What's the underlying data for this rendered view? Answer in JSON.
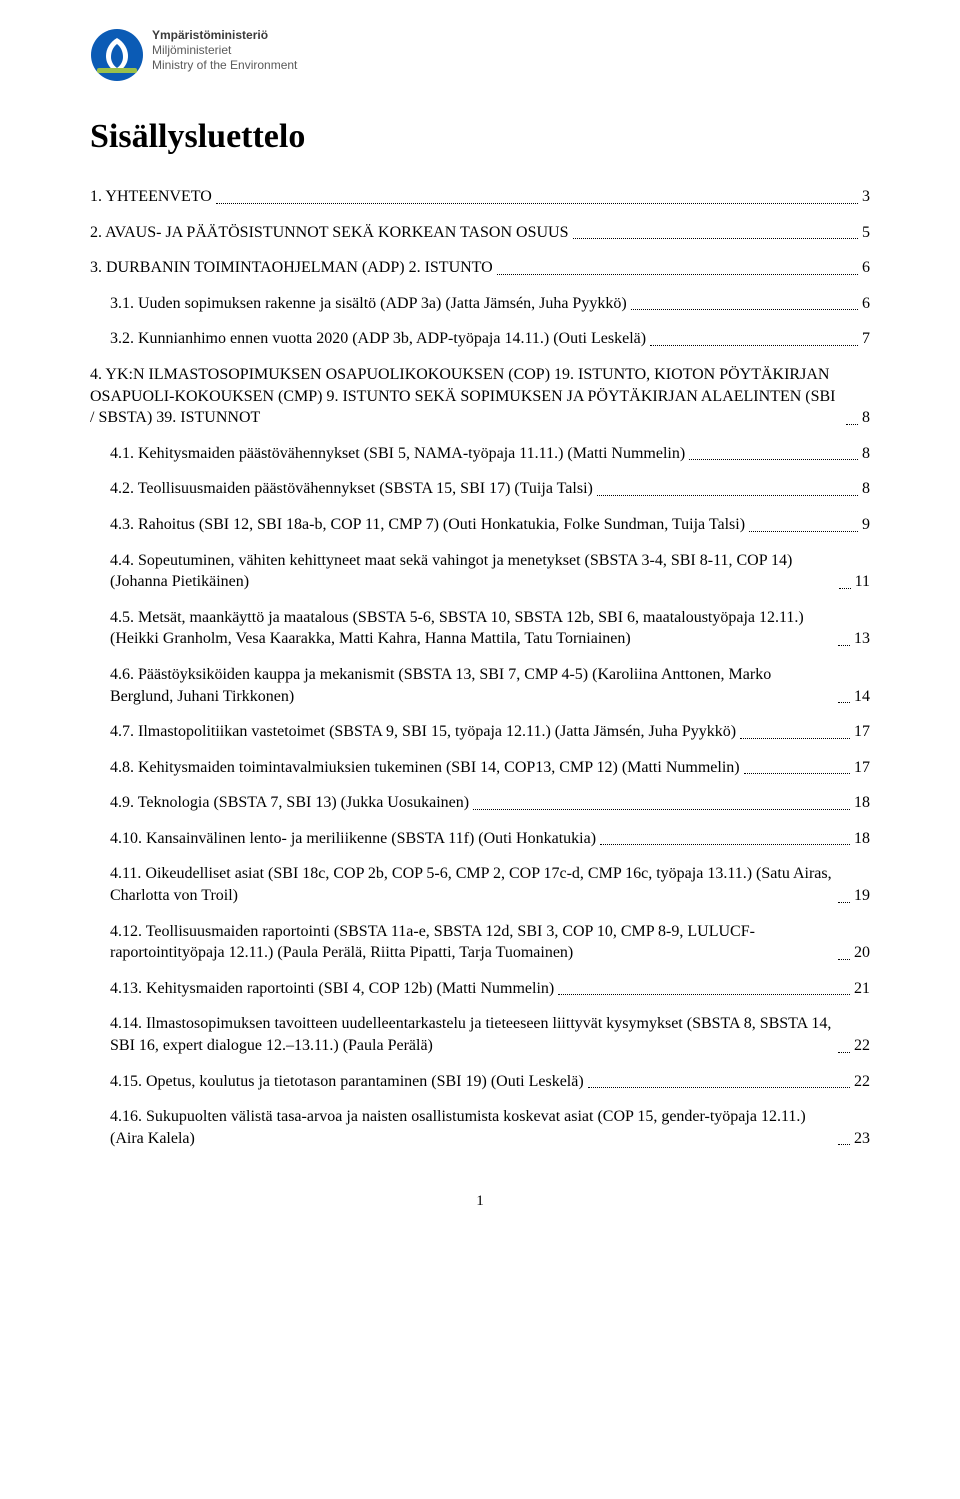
{
  "logo": {
    "line1": "Ympäristöministeriö",
    "line2": "Miljöministeriet",
    "line3": "Ministry of the Environment",
    "emblem_bg": "#0b5bb5",
    "emblem_fg": "#ffffff"
  },
  "title": "Sisällysluettelo",
  "page_number": "1",
  "toc": [
    {
      "level": 1,
      "label": "1. YHTEENVETO",
      "page": "3"
    },
    {
      "level": 1,
      "label": "2. AVAUS- JA PÄÄTÖSISTUNNOT SEKÄ KORKEAN TASON OSUUS",
      "page": "5"
    },
    {
      "level": 1,
      "label": "3. DURBANIN TOIMINTAOHJELMAN (ADP) 2. ISTUNTO",
      "page": "6"
    },
    {
      "level": 2,
      "label": "3.1. Uuden sopimuksen rakenne ja sisältö (ADP 3a) (Jatta Jämsén, Juha Pyykkö)",
      "page": "6"
    },
    {
      "level": 2,
      "label": "3.2. Kunnianhimo ennen vuotta 2020 (ADP 3b, ADP-työpaja 14.11.) (Outi Leskelä)",
      "page": "7"
    },
    {
      "level": 1,
      "label": "4. YK:N ILMASTOSOPIMUKSEN OSAPUOLIKOKOUKSEN (COP) 19. ISTUNTO, KIOTON PÖYTÄKIRJAN OSAPUOLI-KOKOUKSEN (CMP) 9. ISTUNTO SEKÄ SOPIMUKSEN JA PÖYTÄKIRJAN ALAELINTEN (SBI / SBSTA) 39. ISTUNNOT",
      "page": "8"
    },
    {
      "level": 2,
      "label": "4.1. Kehitysmaiden päästövähennykset (SBI 5, NAMA-työpaja 11.11.) (Matti Nummelin)",
      "page": "8"
    },
    {
      "level": 2,
      "label": "4.2. Teollisuusmaiden päästövähennykset (SBSTA 15, SBI 17) (Tuija Talsi)",
      "page": "8"
    },
    {
      "level": 2,
      "label": "4.3. Rahoitus (SBI 12, SBI 18a-b, COP 11, CMP 7) (Outi Honkatukia, Folke Sundman, Tuija Talsi)",
      "page": "9"
    },
    {
      "level": 2,
      "label": "4.4. Sopeutuminen, vähiten kehittyneet maat sekä vahingot ja menetykset (SBSTA 3-4, SBI 8-11, COP 14) (Johanna Pietikäinen)",
      "page": "11"
    },
    {
      "level": 2,
      "label": "4.5. Metsät, maankäyttö ja maatalous (SBSTA 5-6, SBSTA 10, SBSTA 12b, SBI 6, maataloustyöpaja 12.11.) (Heikki Granholm, Vesa Kaarakka, Matti Kahra, Hanna Mattila, Tatu Torniainen)",
      "page": "13"
    },
    {
      "level": 2,
      "label": "4.6. Päästöyksiköiden kauppa ja mekanismit (SBSTA 13, SBI 7, CMP 4-5) (Karoliina Anttonen, Marko Berglund, Juhani Tirkkonen)",
      "page": "14"
    },
    {
      "level": 2,
      "label": "4.7. Ilmastopolitiikan vastetoimet (SBSTA 9, SBI 15, työpaja 12.11.) (Jatta Jämsén, Juha Pyykkö)",
      "page": "17"
    },
    {
      "level": 2,
      "label": "4.8. Kehitysmaiden toimintavalmiuksien tukeminen (SBI 14, COP13, CMP 12) (Matti Nummelin)",
      "page": "17"
    },
    {
      "level": 2,
      "label": "4.9. Teknologia (SBSTA 7, SBI 13) (Jukka Uosukainen)",
      "page": "18"
    },
    {
      "level": 2,
      "label": "4.10. Kansainvälinen lento- ja meriliikenne (SBSTA 11f) (Outi Honkatukia)",
      "page": "18"
    },
    {
      "level": 2,
      "label": "4.11. Oikeudelliset asiat (SBI 18c, COP 2b, COP 5-6, CMP 2, COP 17c-d, CMP 16c, työpaja 13.11.) (Satu Airas, Charlotta von Troil)",
      "page": "19"
    },
    {
      "level": 2,
      "label": "4.12. Teollisuusmaiden raportointi (SBSTA 11a-e, SBSTA 12d, SBI 3, COP 10, CMP 8-9, LULUCF-raportointityöpaja 12.11.) (Paula Perälä, Riitta Pipatti, Tarja Tuomainen)",
      "page": "20"
    },
    {
      "level": 2,
      "label": "4.13. Kehitysmaiden raportointi (SBI 4, COP 12b) (Matti Nummelin)",
      "page": "21"
    },
    {
      "level": 2,
      "label": "4.14. Ilmastosopimuksen tavoitteen uudelleentarkastelu ja tieteeseen liittyvät kysymykset (SBSTA 8, SBSTA 14, SBI 16, expert dialogue 12.–13.11.) (Paula Perälä)",
      "page": "22"
    },
    {
      "level": 2,
      "label": "4.15. Opetus, koulutus ja tietotason parantaminen (SBI 19) (Outi Leskelä)",
      "page": "22"
    },
    {
      "level": 2,
      "label": "4.16. Sukupuolten välistä tasa-arvoa ja naisten osallistumista koskevat asiat (COP 15, gender-työpaja 12.11.) (Aira Kalela)",
      "page": "23"
    }
  ],
  "style": {
    "body_font": "Times New Roman",
    "title_fontsize_pt": 26,
    "entry_fontsize_pt": 12,
    "text_color": "#000000",
    "bg_color": "#ffffff",
    "leader_style": "dotted"
  }
}
